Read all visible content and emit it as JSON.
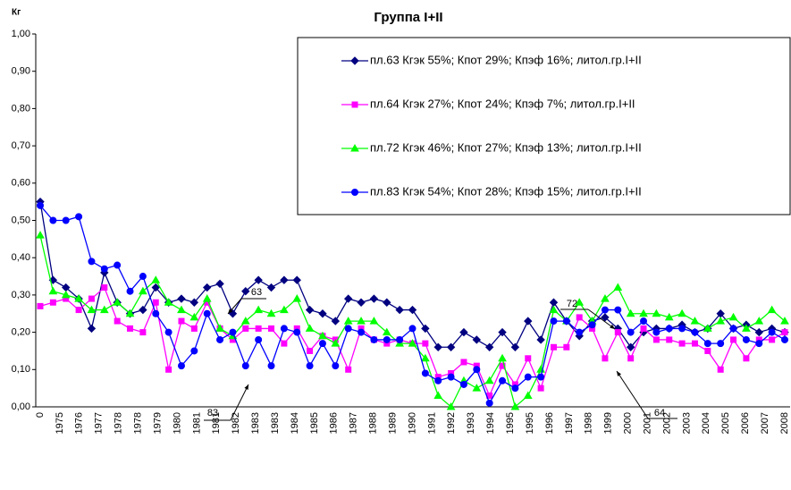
{
  "chart_data": {
    "type": "line",
    "title": "Группа I+II",
    "y_label": "Кг",
    "xtick_labels": [
      "0",
      "1975",
      "1976",
      "1977",
      "1978",
      "1978",
      "1979",
      "1980",
      "1981",
      "1981",
      "1982",
      "1983",
      "1983",
      "1984",
      "1985",
      "1986",
      "1987",
      "1988",
      "1989",
      "1990",
      "1991",
      "1992",
      "1993",
      "1994",
      "1995",
      "1995",
      "1996",
      "1997",
      "1998",
      "1999",
      "2000",
      "2001",
      "2002",
      "2003",
      "2004",
      "2005",
      "2006",
      "2007",
      "2008"
    ],
    "ylim": [
      0,
      1
    ],
    "yticks": [
      {
        "value": 0,
        "label": "0,00"
      },
      {
        "value": 0.1,
        "label": "0,10"
      },
      {
        "value": 0.2,
        "label": "0,20"
      },
      {
        "value": 0.3,
        "label": "0,30"
      },
      {
        "value": 0.4,
        "label": "0,40"
      },
      {
        "value": 0.5,
        "label": "0,50"
      },
      {
        "value": 0.6,
        "label": "0,60"
      },
      {
        "value": 0.7,
        "label": "0,70"
      },
      {
        "value": 0.8,
        "label": "0,80"
      },
      {
        "value": 0.9,
        "label": "0,90"
      },
      {
        "value": 1,
        "label": "1,00"
      }
    ],
    "series": [
      {
        "name": "пл.63 Кгэк 55%; Кпот 29%; Кпэф 16%; литол.гр.I+II",
        "color": "#000080",
        "marker": "diamond",
        "values": [
          0.55,
          0.34,
          0.32,
          0.29,
          0.21,
          0.36,
          0.28,
          0.25,
          0.26,
          0.32,
          0.28,
          0.29,
          0.28,
          0.32,
          0.33,
          0.25,
          0.31,
          0.34,
          0.32,
          0.34,
          0.34,
          0.26,
          0.25,
          0.23,
          0.29,
          0.28,
          0.29,
          0.28,
          0.26,
          0.26,
          0.21,
          0.16,
          0.16,
          0.2,
          0.18,
          0.16,
          0.2,
          0.16,
          0.23,
          0.18,
          0.28,
          0.23,
          0.19,
          0.23,
          0.24,
          0.21,
          0.16,
          0.2,
          0.21,
          0.21,
          0.22,
          0.2,
          0.21,
          0.25,
          0.21,
          0.22,
          0.2,
          0.21,
          0.2
        ]
      },
      {
        "name": "пл.64 Кгэк 27%; Кпот 24%; Кпэф 7%; литол.гр.I+II",
        "color": "#ff00ff",
        "marker": "square",
        "values": [
          0.27,
          0.28,
          0.29,
          0.26,
          0.29,
          0.32,
          0.23,
          0.21,
          0.2,
          0.28,
          0.1,
          0.23,
          0.21,
          0.28,
          0.21,
          0.18,
          0.21,
          0.21,
          0.21,
          0.17,
          0.21,
          0.15,
          0.19,
          0.18,
          0.1,
          0.21,
          0.18,
          0.17,
          0.18,
          0.17,
          0.17,
          0.08,
          0.09,
          0.12,
          0.11,
          0.03,
          0.11,
          0.06,
          0.13,
          0.05,
          0.16,
          0.16,
          0.24,
          0.21,
          0.13,
          0.2,
          0.13,
          0.21,
          0.18,
          0.18,
          0.17,
          0.17,
          0.15,
          0.1,
          0.18,
          0.13,
          0.18,
          0.18,
          0.2
        ]
      },
      {
        "name": "пл.72 Кгэк 46%; Кпот 27%; Кпэф 13%; литол.гр.I+II",
        "color": "#00ff00",
        "marker": "triangle",
        "values": [
          0.46,
          0.31,
          0.3,
          0.29,
          0.26,
          0.26,
          0.28,
          0.25,
          0.31,
          0.34,
          0.28,
          0.26,
          0.24,
          0.29,
          0.21,
          0.19,
          0.23,
          0.26,
          0.25,
          0.26,
          0.29,
          0.21,
          0.19,
          0.17,
          0.23,
          0.23,
          0.23,
          0.2,
          0.17,
          0.17,
          0.13,
          0.03,
          0,
          0.07,
          0.05,
          0.07,
          0.13,
          0,
          0.03,
          0.1,
          0.26,
          0.23,
          0.28,
          0.23,
          0.29,
          0.32,
          0.25,
          0.25,
          0.25,
          0.24,
          0.25,
          0.23,
          0.21,
          0.23,
          0.24,
          0.21,
          0.23,
          0.26,
          0.23
        ]
      },
      {
        "name": "пл.83 Кгэк 54%; Кпот 28%; Кпэф 15%; литол.гр.I+II",
        "color": "#0000ff",
        "marker": "circle",
        "values": [
          0.54,
          0.5,
          0.5,
          0.51,
          0.39,
          0.37,
          0.38,
          0.31,
          0.35,
          0.25,
          0.2,
          0.11,
          0.15,
          0.25,
          0.18,
          0.2,
          0.11,
          0.18,
          0.11,
          0.21,
          0.2,
          0.11,
          0.17,
          0.11,
          0.21,
          0.2,
          0.18,
          0.18,
          0.18,
          0.21,
          0.09,
          0.07,
          0.08,
          0.06,
          0.1,
          0.01,
          0.07,
          0.05,
          0.08,
          0.08,
          0.23,
          0.23,
          0.2,
          0.22,
          0.26,
          0.26,
          0.2,
          0.23,
          0.2,
          0.21,
          0.21,
          0.2,
          0.17,
          0.17,
          0.21,
          0.18,
          0.17,
          0.2,
          0.18
        ]
      }
    ],
    "annotations": [
      "63",
      "83",
      "72",
      "64"
    ]
  }
}
